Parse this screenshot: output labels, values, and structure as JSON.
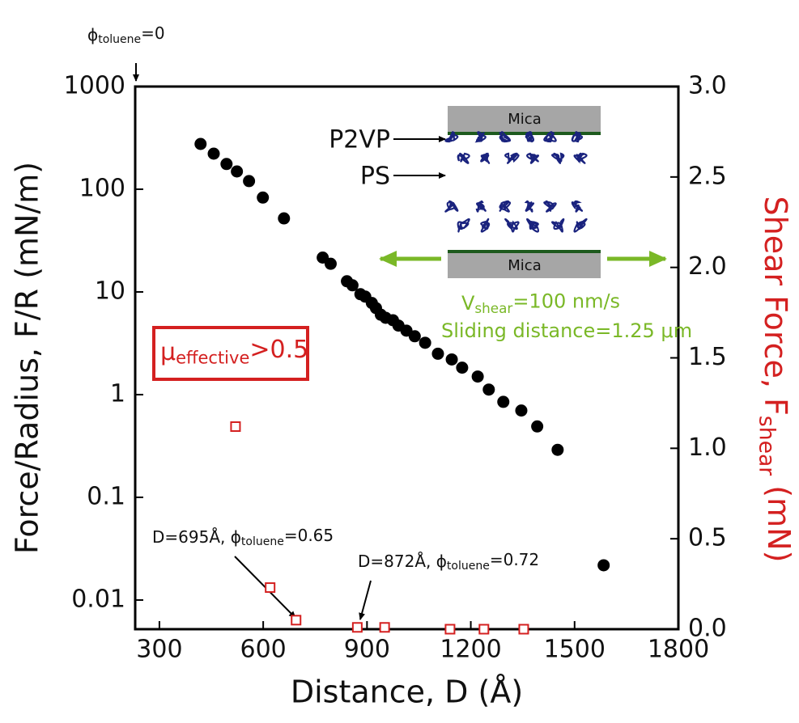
{
  "chart_data": {
    "type": "scatter",
    "xlabel": "Distance, D (Å)",
    "ylabel": "Force/Radius, F/R (mN/m)",
    "y2label": [
      "Shear Force, F",
      "shear",
      " (mN)"
    ],
    "xlim": [
      230,
      1800
    ],
    "xticks": [
      300,
      600,
      900,
      1200,
      1500,
      1800
    ],
    "ylim": [
      0.0052,
      1000
    ],
    "yscale": "log",
    "yticks": [
      0.01,
      0.1,
      1,
      10,
      100,
      1000
    ],
    "y2lim": [
      0,
      3
    ],
    "y2color": "#d42020",
    "y2ticks": [
      {
        "value": 0,
        "label": "0.0"
      },
      {
        "value": 0.5,
        "label": "0.5"
      },
      {
        "value": 1,
        "label": "1.0"
      },
      {
        "value": 1.5,
        "label": "1.5"
      },
      {
        "value": 2,
        "label": "2.0"
      },
      {
        "value": 2.5,
        "label": "2.5"
      },
      {
        "value": 3,
        "label": "3.0"
      }
    ],
    "series": [
      {
        "color": "#000000",
        "marker": "circle",
        "x": [
          419,
          457,
          494,
          524,
          559,
          599,
          660,
          772,
          795,
          842,
          858,
          881,
          895,
          914,
          926,
          940,
          954,
          975,
          991,
          1014,
          1038,
          1068,
          1105,
          1145,
          1175,
          1220,
          1252,
          1294,
          1346,
          1392,
          1451,
          1584
        ],
        "values": [
          276,
          222,
          176,
          149,
          120,
          83,
          52,
          21.6,
          18.8,
          12.7,
          11.6,
          9.5,
          9.0,
          7.8,
          6.96,
          6.0,
          5.6,
          5.3,
          4.7,
          4.2,
          3.7,
          3.2,
          2.5,
          2.2,
          1.83,
          1.5,
          1.12,
          0.85,
          0.7,
          0.49,
          0.29,
          0.0218
        ]
      },
      {
        "color": "#d42020",
        "marker": "square",
        "axis": "y2",
        "x": [
          520,
          620,
          695,
          872,
          951,
          1140,
          1238,
          1353
        ],
        "values": [
          1.12,
          0.23,
          0.05,
          0.01,
          0.01,
          0,
          0,
          0
        ]
      }
    ],
    "annotations": {
      "phi0": [
        "ϕ",
        "toluene",
        "=0"
      ],
      "mu": [
        "μ",
        "effective",
        ">0.5"
      ],
      "d695": [
        "D=695Å, ϕ",
        "toluene",
        "=0.65"
      ],
      "d872": [
        "D=872Å, ϕ",
        "toluene",
        "=0.72"
      ],
      "mica": [
        "Mica",
        "Mica"
      ],
      "p2vp": "P2VP",
      "ps": "PS",
      "vshear": [
        "V",
        "shear",
        "=100 nm/s"
      ],
      "sliding": "Sliding distance=1.25 μm"
    }
  }
}
